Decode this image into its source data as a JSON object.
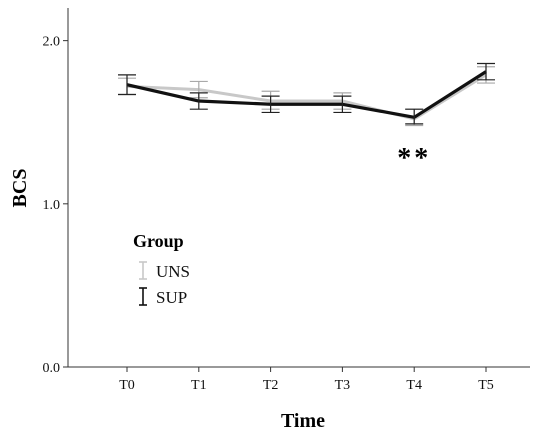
{
  "chart_data": {
    "type": "line",
    "x": [
      "T0",
      "T1",
      "T2",
      "T3",
      "T4",
      "T5"
    ],
    "series": [
      {
        "name": "UNS",
        "color": "#c8c8c8",
        "values": [
          1.72,
          1.7,
          1.63,
          1.63,
          1.52,
          1.79
        ],
        "err_low": [
          1.67,
          1.65,
          1.58,
          1.58,
          1.48,
          1.74
        ],
        "err_high": [
          1.77,
          1.75,
          1.69,
          1.68,
          1.58,
          1.84
        ]
      },
      {
        "name": "SUP",
        "color": "#111111",
        "values": [
          1.73,
          1.63,
          1.61,
          1.61,
          1.53,
          1.81
        ],
        "err_low": [
          1.67,
          1.58,
          1.56,
          1.56,
          1.49,
          1.76
        ],
        "err_high": [
          1.79,
          1.68,
          1.66,
          1.66,
          1.58,
          1.86
        ]
      }
    ],
    "xlabel": "Time",
    "ylabel": "BCS",
    "ylim": [
      0.0,
      2.2
    ],
    "yticks": [
      "0.0",
      "1.0",
      "2.0"
    ],
    "ytick_values": [
      0.0,
      1.0,
      2.0
    ],
    "legend": {
      "title": "Group",
      "placement": "center-left"
    },
    "annotation": {
      "text": "**",
      "x": "T4"
    },
    "grid": false
  }
}
